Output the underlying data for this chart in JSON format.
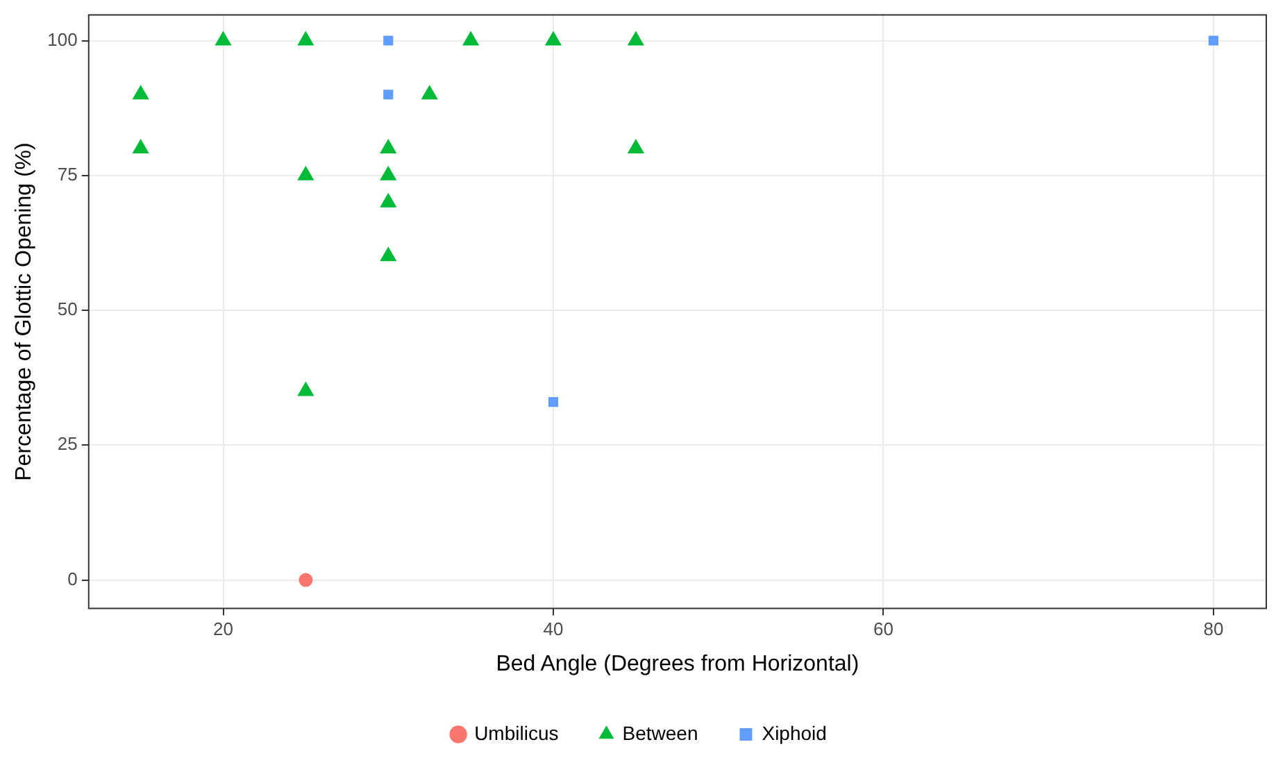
{
  "chart_data": {
    "type": "scatter",
    "xlabel": "Bed Angle (Degrees from Horizontal)",
    "ylabel": "Percentage of Glottic Opening (%)",
    "xlim": [
      11.85,
      83.2
    ],
    "xticks": [
      20,
      40,
      60,
      80
    ],
    "ylim": [
      -5.25,
      104.75
    ],
    "yticks": [
      0,
      25,
      50,
      75,
      100
    ],
    "grid": true,
    "legend": "bottom",
    "series": [
      {
        "name": "Umbilicus",
        "color": "#f8766d",
        "marker": "circle",
        "x": [
          25
        ],
        "values": [
          0
        ]
      },
      {
        "name": "Between",
        "color": "#00ba38",
        "marker": "triangle",
        "x": [
          15,
          15,
          20,
          25,
          25,
          25,
          30,
          30,
          30,
          30,
          32.5,
          35,
          40,
          45,
          45
        ],
        "values": [
          90,
          80,
          100,
          100,
          75,
          35,
          80,
          75,
          70,
          60,
          90,
          100,
          100,
          100,
          80
        ]
      },
      {
        "name": "Xiphoid",
        "color": "#619cff",
        "marker": "square",
        "x": [
          30,
          30,
          40,
          80
        ],
        "values": [
          100,
          90,
          33,
          100
        ]
      }
    ]
  }
}
